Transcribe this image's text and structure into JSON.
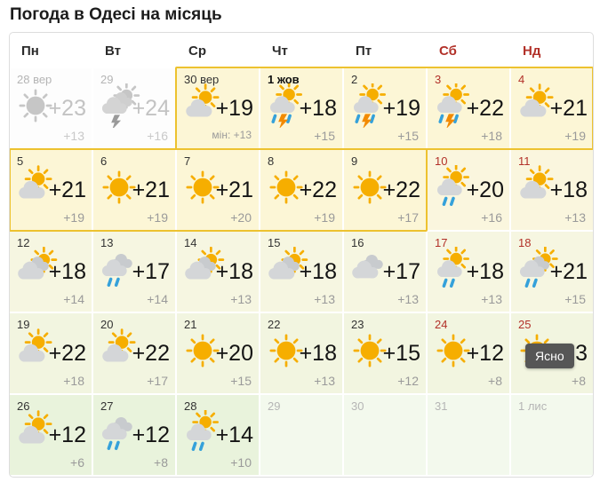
{
  "page_title": "Погода в Одесі на місяць",
  "tooltip": {
    "label": "Ясно"
  },
  "colors": {
    "highlight_border": "#edc22f",
    "weekend_red": "#b23129",
    "cell_yellow": "#fcf6d6",
    "cell_green": "#e9f3dc",
    "tooltip_bg": "#565656",
    "sun": "#f6ae00",
    "cloud": "#d4d6d8",
    "rain_drop": "#35a1da",
    "lightning": "#f28a00"
  },
  "calendar": {
    "weekdays": [
      {
        "label": "Пн",
        "weekend": false
      },
      {
        "label": "Вт",
        "weekend": false
      },
      {
        "label": "Ср",
        "weekend": false
      },
      {
        "label": "Чт",
        "weekend": false
      },
      {
        "label": "Пт",
        "weekend": false
      },
      {
        "label": "Сб",
        "weekend": true
      },
      {
        "label": "Нд",
        "weekend": true
      }
    ],
    "days": [
      {
        "date": "28 вер",
        "high": "+23",
        "low": "+13",
        "icon": "sun-gray",
        "tone": "past",
        "style": "past"
      },
      {
        "date": "29",
        "high": "+24",
        "low": "+16",
        "icon": "storm-gray",
        "tone": "past",
        "style": "past"
      },
      {
        "date": "30 вер",
        "high": "+19",
        "low": "мін: +13",
        "low_small": true,
        "icon": "sun-cloud",
        "tone": "wk",
        "style": "normal"
      },
      {
        "date": "1 жов",
        "high": "+18",
        "low": "+15",
        "icon": "sun-cloud-storm",
        "tone": "wk",
        "style": "bold"
      },
      {
        "date": "2",
        "high": "+19",
        "low": "+15",
        "icon": "sun-cloud-storm",
        "tone": "wk",
        "style": "normal"
      },
      {
        "date": "3",
        "high": "+22",
        "low": "+18",
        "icon": "sun-cloud-storm",
        "tone": "wk",
        "style": "red"
      },
      {
        "date": "4",
        "high": "+21",
        "low": "+19",
        "icon": "sun-cloud",
        "tone": "wk",
        "style": "red"
      },
      {
        "date": "5",
        "high": "+21",
        "low": "+19",
        "icon": "sun-cloud",
        "tone": "wk",
        "style": "normal"
      },
      {
        "date": "6",
        "high": "+21",
        "low": "+19",
        "icon": "sun",
        "tone": "wk",
        "style": "normal"
      },
      {
        "date": "7",
        "high": "+21",
        "low": "+20",
        "icon": "sun",
        "tone": "wk",
        "style": "normal"
      },
      {
        "date": "8",
        "high": "+22",
        "low": "+19",
        "icon": "sun",
        "tone": "wk",
        "style": "normal"
      },
      {
        "date": "9",
        "high": "+22",
        "low": "+17",
        "icon": "sun",
        "tone": "wk",
        "style": "normal"
      },
      {
        "date": "10",
        "high": "+20",
        "low": "+16",
        "icon": "sun-cloud-rain",
        "tone": "wk2",
        "style": "red"
      },
      {
        "date": "11",
        "high": "+18",
        "low": "+13",
        "icon": "sun-cloud",
        "tone": "wk2",
        "style": "red"
      },
      {
        "date": "12",
        "high": "+18",
        "low": "+14",
        "icon": "cloud-sun",
        "tone": "mid",
        "style": "normal"
      },
      {
        "date": "13",
        "high": "+17",
        "low": "+14",
        "icon": "cloud-rain",
        "tone": "mid",
        "style": "normal"
      },
      {
        "date": "14",
        "high": "+18",
        "low": "+13",
        "icon": "cloud-sun",
        "tone": "mid",
        "style": "normal"
      },
      {
        "date": "15",
        "high": "+18",
        "low": "+13",
        "icon": "cloud-sun",
        "tone": "mid",
        "style": "normal"
      },
      {
        "date": "16",
        "high": "+17",
        "low": "+13",
        "icon": "clouds",
        "tone": "mid",
        "style": "normal"
      },
      {
        "date": "17",
        "high": "+18",
        "low": "+13",
        "icon": "sun-cloud-rain",
        "tone": "mid",
        "style": "red"
      },
      {
        "date": "18",
        "high": "+21",
        "low": "+15",
        "icon": "cloud-sun-rain",
        "tone": "mid",
        "style": "red"
      },
      {
        "date": "19",
        "high": "+22",
        "low": "+18",
        "icon": "sun-cloud",
        "tone": "mid2",
        "style": "normal"
      },
      {
        "date": "20",
        "high": "+22",
        "low": "+17",
        "icon": "sun-cloud",
        "tone": "mid2",
        "style": "normal"
      },
      {
        "date": "21",
        "high": "+20",
        "low": "+15",
        "icon": "sun",
        "tone": "mid2",
        "style": "normal"
      },
      {
        "date": "22",
        "high": "+18",
        "low": "+13",
        "icon": "sun",
        "tone": "mid2",
        "style": "normal"
      },
      {
        "date": "23",
        "high": "+15",
        "low": "+12",
        "icon": "sun",
        "tone": "mid2",
        "style": "normal"
      },
      {
        "date": "24",
        "high": "+12",
        "low": "+8",
        "icon": "sun",
        "tone": "mid2",
        "style": "red"
      },
      {
        "date": "25",
        "high": "+13",
        "low": "+8",
        "icon": "sun",
        "tone": "mid2",
        "style": "red"
      },
      {
        "date": "26",
        "high": "+12",
        "low": "+6",
        "icon": "sun-cloud",
        "tone": "near",
        "style": "normal"
      },
      {
        "date": "27",
        "high": "+12",
        "low": "+8",
        "icon": "cloud-rain",
        "tone": "near",
        "style": "normal"
      },
      {
        "date": "28",
        "high": "+14",
        "low": "+10",
        "icon": "sun-cloud-rain",
        "tone": "near",
        "style": "normal"
      },
      {
        "date": "29",
        "tone": "far",
        "style": "future"
      },
      {
        "date": "30",
        "tone": "far",
        "style": "future"
      },
      {
        "date": "31",
        "tone": "far",
        "style": "future"
      },
      {
        "date": "1 лис",
        "tone": "far",
        "style": "future"
      }
    ]
  }
}
